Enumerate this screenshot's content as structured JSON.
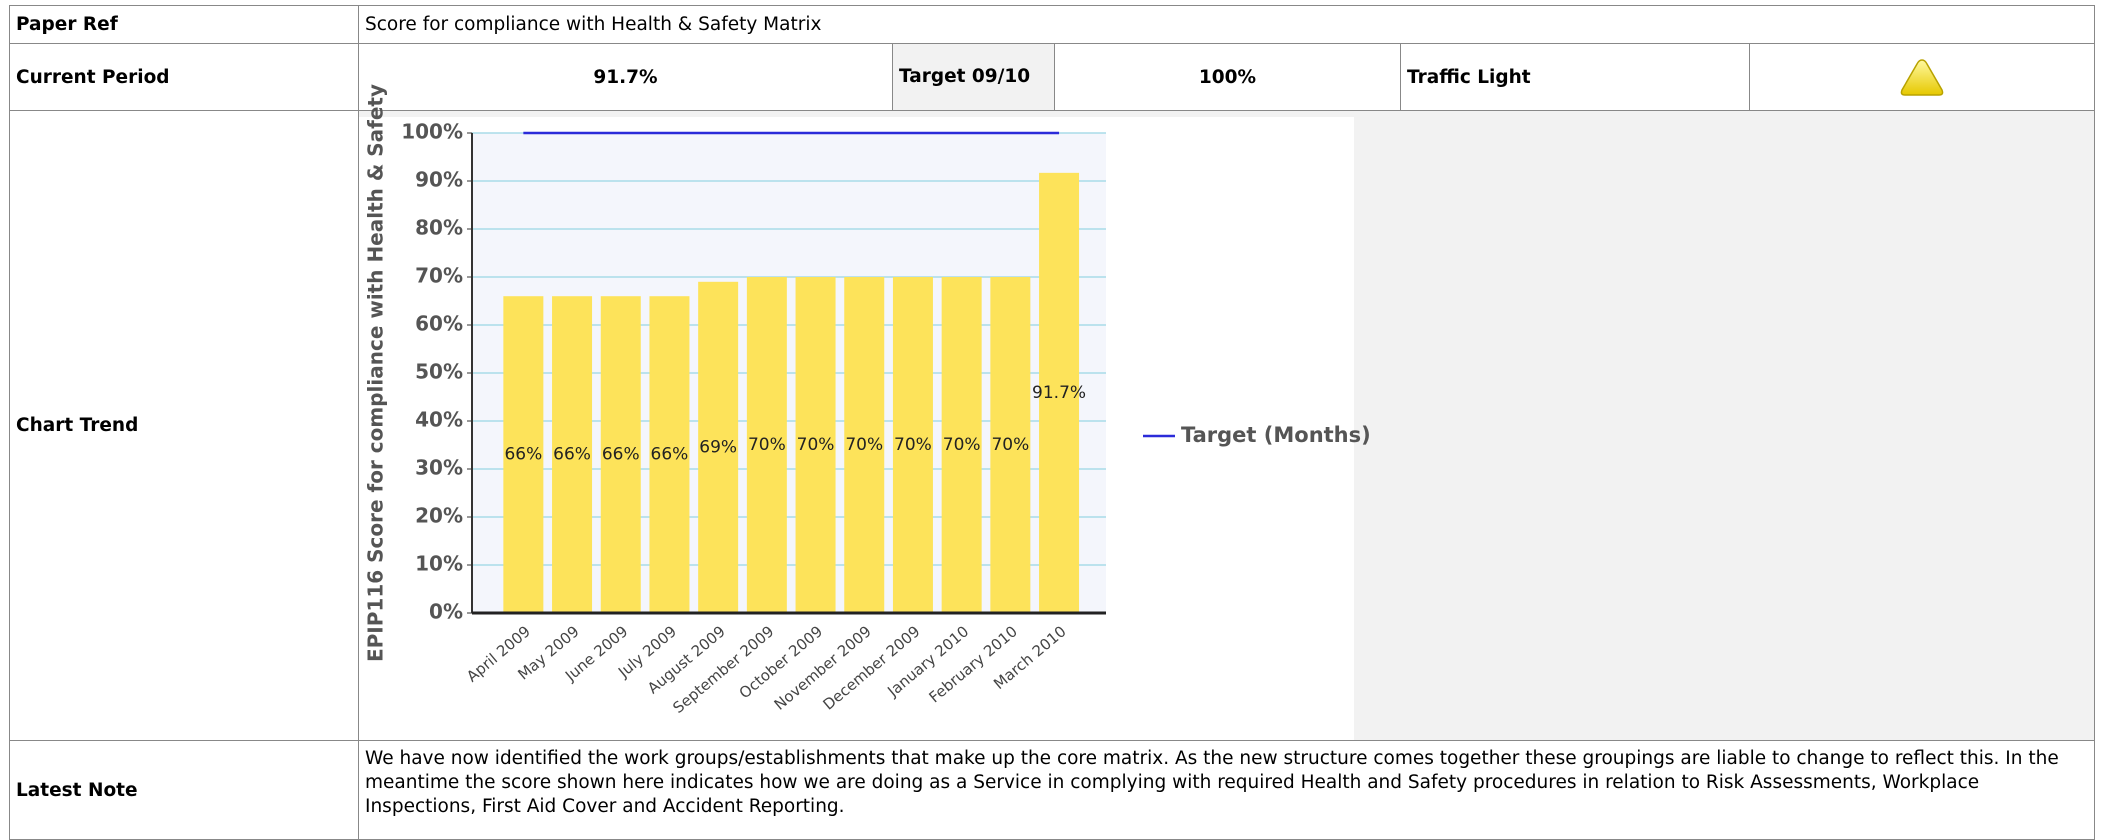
{
  "table": {
    "rows": [
      [
        "Paper Ref",
        "Score for compliance with Health & Safety Matrix"
      ],
      [
        "Current Period",
        "91.7%",
        "Target 09/10",
        "100%",
        "Traffic Light"
      ],
      [
        "Chart Trend"
      ],
      [
        "Latest Note",
        "We have now identified the work groups/establishments that make up the core matrix. As the new structure comes together these groupings are liable to change to reflect this. In the meantime the score shown here indicates how we are doing as a Service in complying with required Health and Safety procedures in relation to Risk Assessments, Workplace Inspections, First Aid Cover and Accident Reporting."
      ]
    ]
  },
  "chart_data": {
    "type": "bar",
    "y_label": "EPIP116 Score for compliance with Health & Safety",
    "categories": [
      "April 2009",
      "May 2009",
      "June 2009",
      "July 2009",
      "August 2009",
      "September 2009",
      "October 2009",
      "November 2009",
      "December 2009",
      "January 2010",
      "February 2010",
      "March 2010"
    ],
    "series": [
      {
        "type": "bar",
        "color": "#fde35a",
        "values": [
          66,
          66,
          66,
          66,
          69,
          70,
          70,
          70,
          70,
          70,
          70,
          91.7
        ],
        "value_labels": [
          "66%",
          "66%",
          "66%",
          "66%",
          "69%",
          "70%",
          "70%",
          "70%",
          "70%",
          "70%",
          "70%",
          "91.7%"
        ]
      },
      {
        "type": "line",
        "name": "Target (Months)",
        "color": "#2b2bd9",
        "values": [
          100,
          100,
          100,
          100,
          100,
          100,
          100,
          100,
          100,
          100,
          100,
          100
        ]
      }
    ],
    "ylim": [
      0,
      100
    ],
    "yticks": [
      {
        "value": 0,
        "label": "0%"
      },
      {
        "value": 10,
        "label": "10%"
      },
      {
        "value": 20,
        "label": "20%"
      },
      {
        "value": 30,
        "label": "30%"
      },
      {
        "value": 40,
        "label": "40%"
      },
      {
        "value": 50,
        "label": "50%"
      },
      {
        "value": 60,
        "label": "60%"
      },
      {
        "value": 70,
        "label": "70%"
      },
      {
        "value": 80,
        "label": "80%"
      },
      {
        "value": 90,
        "label": "90%"
      },
      {
        "value": 100,
        "label": "100%"
      }
    ],
    "grid": true
  }
}
